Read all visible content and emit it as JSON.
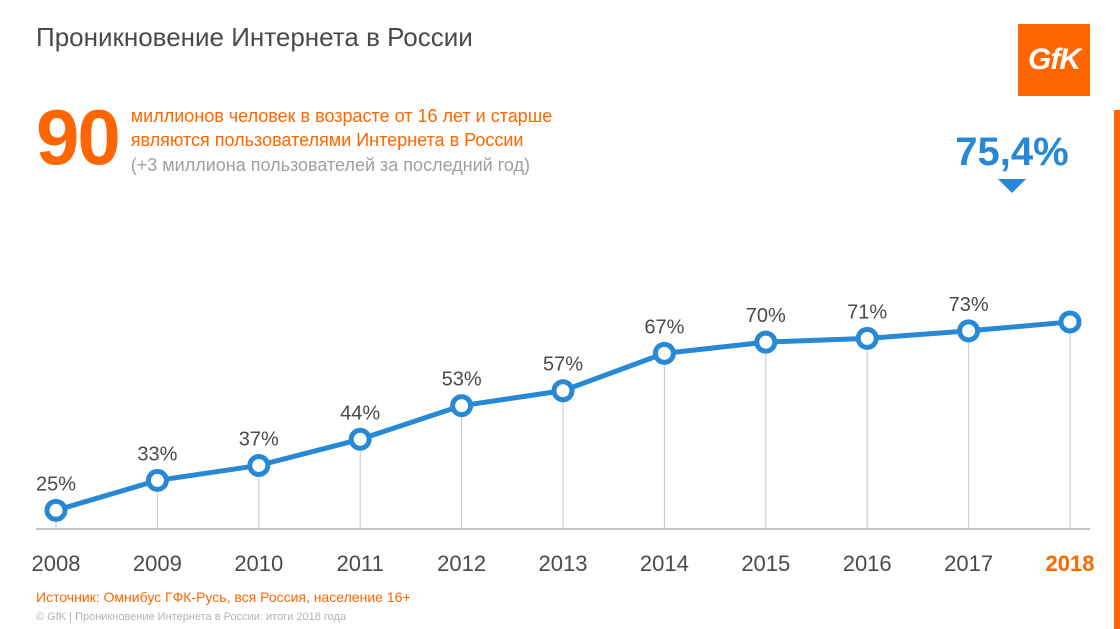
{
  "title": "Проникновение Интернета в России",
  "logo_text": "GfK",
  "logo_bg": "#ff6600",
  "logo_fg": "#ffffff",
  "headline": {
    "big_number": "90",
    "line1": "миллионов человек в возрасте от 16 лет и старше",
    "line2": "являются пользователями Интернета в России",
    "line3": "(+3 миллиона пользователей за последний год)",
    "big_number_color": "#ff6600",
    "line12_color": "#ff6600",
    "line3_color": "#a0a0a0",
    "big_number_fontsize": 78,
    "text_fontsize": 18
  },
  "callout": {
    "value": "75,4%",
    "color": "#2788d6",
    "fontsize": 40
  },
  "chart": {
    "type": "line",
    "years": [
      "2008",
      "2009",
      "2010",
      "2011",
      "2012",
      "2013",
      "2014",
      "2015",
      "2016",
      "2017",
      "2018"
    ],
    "values": [
      25,
      33,
      37,
      44,
      53,
      57,
      67,
      70,
      71,
      73,
      75.4
    ],
    "show_label": [
      true,
      true,
      true,
      true,
      true,
      true,
      true,
      true,
      true,
      true,
      false
    ],
    "labels": [
      "25%",
      "33%",
      "37%",
      "44%",
      "53%",
      "57%",
      "67%",
      "70%",
      "71%",
      "73%",
      "75,4%"
    ],
    "ylim": [
      20,
      100
    ],
    "line_color": "#2788d6",
    "line_width": 5,
    "marker_fill": "#ffffff",
    "marker_stroke": "#2788d6",
    "marker_stroke_width": 5,
    "marker_radius": 9,
    "drop_line_color": "#c8c8c8",
    "drop_line_width": 1,
    "axis_color": "#b0b0b0",
    "data_label_fontsize": 20,
    "data_label_color": "#4a4a4a",
    "x_label_fontsize": 22,
    "x_label_color": "#4a4a4a",
    "x_label_highlight_color": "#ff6600",
    "highlight_year": "2018",
    "background_color": "#ffffff"
  },
  "source": {
    "text": "Источник: Омнибус ГФК-Русь, вся Россия, население 16+",
    "color": "#ff6600",
    "fontsize": 14
  },
  "footer": "© GfK | Проникновение Интернета в России: итоги 2018 года",
  "accent_bar_color": "#ff6600"
}
